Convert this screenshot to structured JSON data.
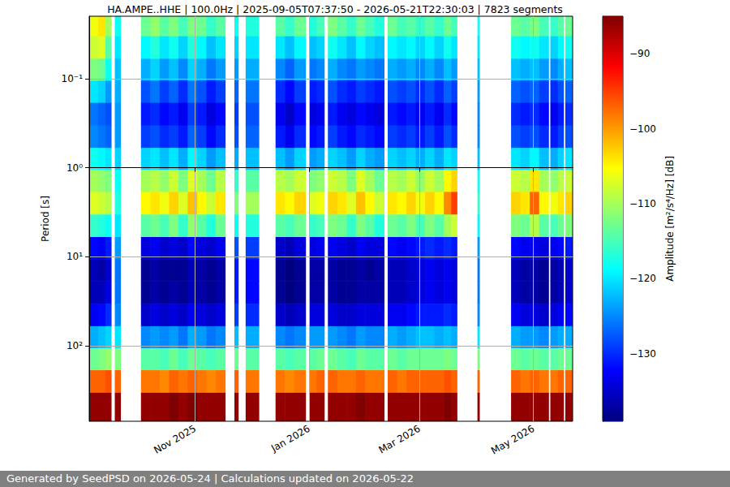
{
  "chart_data": {
    "type": "heatmap",
    "title": "HA.AMPE..HHE | 100.0Hz | 2025-09-05T07:37:50 - 2026-05-21T22:30:03 | 7823 segments",
    "footer": "Generated by SeedPSD on 2026-05-24 | Calculations updated on 2026-05-22",
    "ylabel": "Period [s]",
    "log": "y",
    "grid": true,
    "xlim": [
      "2025-09-05T07:37:50",
      "2026-05-21T22:30:03"
    ],
    "xticks": [
      {
        "value": "2025-11-01",
        "label": "Nov 2025"
      },
      {
        "value": "2026-01-01",
        "label": "Jan 2026"
      },
      {
        "value": "2026-03-01",
        "label": "Mar 2026"
      },
      {
        "value": "2026-05-01",
        "label": "May 2026"
      }
    ],
    "ylim": [
      0.02,
      700
    ],
    "yticks": [
      {
        "value": 0.1,
        "label": "10⁻¹"
      },
      {
        "value": 1,
        "label": "10⁰"
      },
      {
        "value": 10,
        "label": "10¹"
      },
      {
        "value": 100,
        "label": "10²"
      }
    ],
    "colorbar": {
      "label": "Amplitude [m²/s⁴/Hz] [dB]",
      "range": [
        -139,
        -85
      ],
      "ticks": [
        {
          "value": -130,
          "label": "−130"
        },
        {
          "value": -120,
          "label": "−120"
        },
        {
          "value": -110,
          "label": "−110"
        },
        {
          "value": -100,
          "label": "−100"
        },
        {
          "value": -90,
          "label": "−90"
        }
      ]
    },
    "x": [
      "2025-09-05",
      "2025-09-10",
      "2025-09-14",
      "2025-09-17",
      "2025-09-19",
      "2025-09-22",
      "2025-10-03",
      "2025-10-08",
      "2025-10-13",
      "2025-10-18",
      "2025-10-23",
      "2025-10-28",
      "2025-11-02",
      "2025-11-07",
      "2025-11-12",
      "2025-11-17",
      "2025-11-22",
      "2025-11-24",
      "2025-11-28",
      "2025-12-05",
      "2025-12-14",
      "2025-12-19",
      "2025-12-24",
      "2025-12-30",
      "2026-01-01",
      "2026-01-05",
      "2026-01-09",
      "2026-01-11",
      "2026-01-16",
      "2026-01-21",
      "2026-01-26",
      "2026-01-31",
      "2026-02-05",
      "2026-02-10",
      "2026-02-12",
      "2026-02-17",
      "2026-02-22",
      "2026-02-27",
      "2026-03-04",
      "2026-03-09",
      "2026-03-14",
      "2026-03-18",
      "2026-03-21",
      "2026-04-01",
      "2026-04-02",
      "2026-04-19",
      "2026-04-24",
      "2026-04-29",
      "2026-05-04",
      "2026-05-09",
      "2026-05-10",
      "2026-05-14",
      "2026-05-17",
      "2026-05-18"
    ],
    "y": [
      0.025,
      0.045,
      0.08,
      0.14,
      0.25,
      0.45,
      0.8,
      1.4,
      2.5,
      4.5,
      8,
      14,
      25,
      45,
      80,
      140,
      250,
      450
    ],
    "values": [
      [
        -106,
        -108,
        -112,
        -120,
        -126,
        -125,
        -118,
        -110,
        -107,
        -116,
        -132,
        -136,
        -136,
        -133,
        -123,
        -113,
        -97,
        -86
      ],
      [
        -104,
        -107,
        -113,
        -121,
        -127,
        -126,
        -119,
        -111,
        -108,
        -117,
        -133,
        -137,
        -136,
        -132,
        -122,
        -112,
        -97,
        -86
      ],
      [
        -110,
        -114,
        -118,
        -124,
        -128,
        -127,
        -120,
        -112,
        -109,
        -118,
        -131,
        -135,
        -134,
        -130,
        -121,
        -111,
        -96,
        -86
      ],
      null,
      [
        -118,
        -120,
        -122,
        -123,
        -124,
        -124,
        -121,
        -118,
        -117,
        -120,
        -124,
        -126,
        -126,
        -125,
        -120,
        -112,
        -97,
        -86
      ],
      null,
      [
        -113,
        -119,
        -123,
        -128,
        -131,
        -129,
        -121,
        -110,
        -105,
        -114,
        -134,
        -138,
        -138,
        -135,
        -125,
        -114,
        -98,
        -86
      ],
      [
        -111,
        -117,
        -121,
        -126,
        -130,
        -128,
        -120,
        -109,
        -104,
        -113,
        -133,
        -137,
        -137,
        -134,
        -124,
        -114,
        -98,
        -86
      ],
      [
        -114,
        -120,
        -124,
        -129,
        -132,
        -130,
        -122,
        -111,
        -106,
        -115,
        -135,
        -138,
        -138,
        -135,
        -125,
        -115,
        -99,
        -86
      ],
      [
        -112,
        -118,
        -122,
        -127,
        -131,
        -129,
        -120,
        -108,
        -103,
        -112,
        -134,
        -138,
        -137,
        -134,
        -124,
        -113,
        -97,
        -85
      ],
      [
        -115,
        -121,
        -125,
        -130,
        -133,
        -131,
        -123,
        -112,
        -107,
        -116,
        -135,
        -138,
        -138,
        -135,
        -126,
        -115,
        -98,
        -86
      ],
      [
        -112,
        -117,
        -121,
        -126,
        -129,
        -127,
        -119,
        -107,
        -102,
        -111,
        -132,
        -136,
        -136,
        -133,
        -123,
        -113,
        -97,
        -85
      ],
      [
        -113,
        -119,
        -123,
        -128,
        -131,
        -129,
        -121,
        -110,
        -105,
        -114,
        -134,
        -137,
        -137,
        -134,
        -124,
        -114,
        -98,
        -86
      ],
      [
        -116,
        -122,
        -126,
        -131,
        -134,
        -132,
        -124,
        -113,
        -108,
        -117,
        -135,
        -138,
        -138,
        -135,
        -126,
        -115,
        -99,
        -86
      ],
      [
        -114,
        -120,
        -124,
        -129,
        -132,
        -130,
        -122,
        -109,
        -104,
        -113,
        -133,
        -137,
        -137,
        -134,
        -125,
        -114,
        -98,
        -86
      ],
      null,
      [
        -118,
        -121,
        -124,
        -127,
        -129,
        -128,
        -123,
        -116,
        -112,
        -118,
        -128,
        -131,
        -131,
        -129,
        -122,
        -113,
        -97,
        -86
      ],
      null,
      [
        -117,
        -120,
        -123,
        -126,
        -128,
        -127,
        -122,
        -114,
        -110,
        -117,
        -129,
        -132,
        -132,
        -130,
        -123,
        -114,
        -98,
        -86
      ],
      null,
      [
        -114,
        -120,
        -125,
        -130,
        -133,
        -131,
        -122,
        -109,
        -104,
        -114,
        -135,
        -138,
        -138,
        -135,
        -125,
        -114,
        -98,
        -86
      ],
      [
        -116,
        -122,
        -127,
        -132,
        -135,
        -133,
        -124,
        -110,
        -105,
        -115,
        -136,
        -139,
        -139,
        -136,
        -126,
        -115,
        -99,
        -86
      ],
      [
        -113,
        -119,
        -124,
        -129,
        -132,
        -130,
        -121,
        -108,
        -103,
        -113,
        -134,
        -138,
        -138,
        -135,
        -125,
        -114,
        -98,
        -86
      ],
      null,
      [
        -117,
        -122,
        -126,
        -131,
        -134,
        -132,
        -124,
        -112,
        -107,
        -116,
        -134,
        -137,
        -137,
        -134,
        -124,
        -114,
        -98,
        -86
      ],
      [
        -115,
        -121,
        -125,
        -130,
        -133,
        -131,
        -123,
        -111,
        -106,
        -115,
        -133,
        -137,
        -137,
        -134,
        -124,
        -113,
        -97,
        -86
      ],
      null,
      [
        -112,
        -118,
        -123,
        -128,
        -131,
        -129,
        -121,
        -108,
        -103,
        -112,
        -133,
        -137,
        -137,
        -134,
        -124,
        -113,
        -97,
        -86
      ],
      [
        -114,
        -120,
        -125,
        -130,
        -133,
        -131,
        -122,
        -109,
        -104,
        -113,
        -134,
        -138,
        -138,
        -135,
        -125,
        -114,
        -98,
        -86
      ],
      [
        -116,
        -122,
        -126,
        -131,
        -134,
        -132,
        -124,
        -112,
        -107,
        -116,
        -135,
        -138,
        -138,
        -135,
        -126,
        -115,
        -98,
        -86
      ],
      [
        -113,
        -119,
        -124,
        -129,
        -132,
        -130,
        -121,
        -107,
        -102,
        -112,
        -133,
        -137,
        -137,
        -134,
        -124,
        -113,
        -97,
        -85
      ],
      [
        -115,
        -121,
        -125,
        -130,
        -133,
        -131,
        -123,
        -110,
        -105,
        -114,
        -134,
        -138,
        -137,
        -134,
        -125,
        -114,
        -98,
        -86
      ],
      [
        -117,
        -122,
        -126,
        -131,
        -134,
        -132,
        -124,
        -113,
        -108,
        -117,
        -134,
        -137,
        -137,
        -134,
        -125,
        -114,
        -98,
        -86
      ],
      null,
      [
        -113,
        -119,
        -123,
        -128,
        -131,
        -129,
        -121,
        -109,
        -104,
        -113,
        -132,
        -136,
        -136,
        -133,
        -123,
        -113,
        -97,
        -86
      ],
      [
        -115,
        -120,
        -124,
        -129,
        -132,
        -130,
        -122,
        -110,
        -105,
        -114,
        -133,
        -136,
        -136,
        -133,
        -124,
        -114,
        -98,
        -86
      ],
      [
        -114,
        -119,
        -123,
        -128,
        -131,
        -129,
        -121,
        -108,
        -103,
        -112,
        -132,
        -135,
        -135,
        -132,
        -123,
        -113,
        -97,
        -86
      ],
      [
        -116,
        -121,
        -125,
        -130,
        -133,
        -131,
        -123,
        -111,
        -106,
        -115,
        -131,
        -134,
        -134,
        -131,
        -122,
        -113,
        -97,
        -86
      ],
      [
        -114,
        -119,
        -123,
        -128,
        -131,
        -129,
        -121,
        -108,
        -103,
        -112,
        -130,
        -133,
        -133,
        -131,
        -122,
        -113,
        -97,
        -86
      ],
      [
        -116,
        -121,
        -125,
        -130,
        -133,
        -131,
        -123,
        -110,
        -105,
        -114,
        -131,
        -134,
        -134,
        -131,
        -123,
        -113,
        -97,
        -86
      ],
      [
        -113,
        -118,
        -122,
        -127,
        -130,
        -128,
        -120,
        -105,
        -99,
        -110,
        -130,
        -133,
        -133,
        -130,
        -122,
        -112,
        -96,
        -85
      ],
      [
        -115,
        -120,
        -124,
        -129,
        -132,
        -130,
        -121,
        -103,
        -95,
        -108,
        -131,
        -134,
        -134,
        -131,
        -123,
        -113,
        -97,
        -86
      ],
      null,
      [
        -118,
        -120,
        -122,
        -124,
        -125,
        -125,
        -122,
        -118,
        -116,
        -119,
        -124,
        -126,
        -126,
        -125,
        -120,
        -112,
        -97,
        -86
      ],
      null,
      [
        -113,
        -118,
        -122,
        -127,
        -130,
        -128,
        -120,
        -108,
        -103,
        -112,
        -132,
        -136,
        -136,
        -133,
        -123,
        -113,
        -97,
        -86
      ],
      [
        -114,
        -119,
        -123,
        -128,
        -131,
        -129,
        -121,
        -109,
        -104,
        -113,
        -133,
        -137,
        -137,
        -134,
        -124,
        -114,
        -98,
        -86
      ],
      [
        -112,
        -118,
        -122,
        -127,
        -130,
        -128,
        -119,
        -104,
        -97,
        -109,
        -133,
        -137,
        -137,
        -134,
        -124,
        -113,
        -97,
        -86
      ],
      [
        -115,
        -120,
        -124,
        -129,
        -132,
        -130,
        -122,
        -110,
        -105,
        -114,
        -134,
        -138,
        -138,
        -135,
        -125,
        -114,
        -98,
        -86
      ],
      null,
      [
        -116,
        -121,
        -125,
        -130,
        -133,
        -131,
        -123,
        -111,
        -106,
        -115,
        -133,
        -137,
        -137,
        -134,
        -124,
        -114,
        -98,
        -86
      ],
      [
        -114,
        -119,
        -123,
        -128,
        -131,
        -129,
        -121,
        -109,
        -104,
        -113,
        -132,
        -136,
        -136,
        -133,
        -123,
        -113,
        -97,
        -86
      ],
      null,
      [
        -113,
        -118,
        -122,
        -127,
        -130,
        -128,
        -120,
        -108,
        -103,
        -112,
        -131,
        -135,
        -135,
        -132,
        -123,
        -113,
        -97,
        -86
      ]
    ]
  }
}
